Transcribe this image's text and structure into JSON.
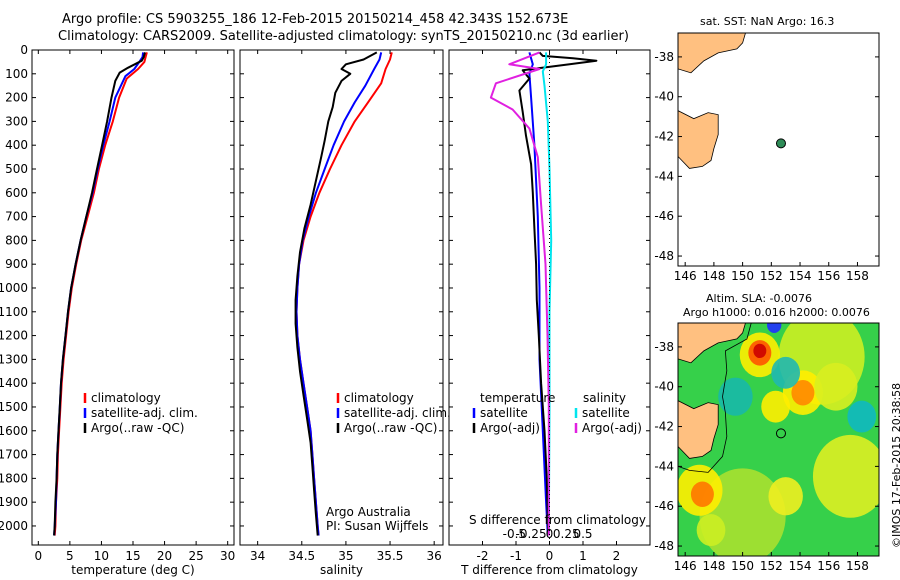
{
  "header": {
    "line1": "Argo profile: CS 5903255_186 12-Feb-2015 20150214_458 42.343S 152.673E",
    "line2": "Climatology: CARS2009. Satellite-adjusted climatology: synTS_20150210.nc (3d earlier)"
  },
  "colors": {
    "climatology": "#ff0000",
    "satellite": "#0000ff",
    "argo": "#000000",
    "sat_s": "#00e5ee",
    "argo_s": "#e020e0",
    "land": "#ffc080",
    "marker": "#2e8b57"
  },
  "chart_data": [
    {
      "type": "line",
      "title": "",
      "xlabel": "temperature (deg C)",
      "ylabel": "",
      "xlim": [
        -1,
        31
      ],
      "ylim": [
        2080,
        0
      ],
      "x_ticks": [
        "0",
        "5",
        "10",
        "15",
        "20",
        "25",
        "30"
      ],
      "y_ticks": [
        "0",
        "100",
        "200",
        "300",
        "400",
        "500",
        "600",
        "700",
        "800",
        "900",
        "1000",
        "1100",
        "1200",
        "1300",
        "1400",
        "1500",
        "1600",
        "1700",
        "1800",
        "1900",
        "2000"
      ],
      "legend": [
        "climatology",
        "satellite-adj. clim.",
        "Argo(..raw -QC)"
      ],
      "legend_placement": "center",
      "series": [
        {
          "name": "climatology",
          "color": "#ff0000",
          "points": [
            [
              17.2,
              10
            ],
            [
              17.0,
              30
            ],
            [
              16.8,
              50
            ],
            [
              15.8,
              80
            ],
            [
              14.0,
              120
            ],
            [
              12.8,
              200
            ],
            [
              11.8,
              300
            ],
            [
              10.6,
              400
            ],
            [
              9.6,
              500
            ],
            [
              8.8,
              600
            ],
            [
              7.8,
              700
            ],
            [
              6.8,
              800
            ],
            [
              6.0,
              900
            ],
            [
              5.3,
              1000
            ],
            [
              4.8,
              1100
            ],
            [
              4.4,
              1200
            ],
            [
              4.0,
              1300
            ],
            [
              3.7,
              1400
            ],
            [
              3.5,
              1500
            ],
            [
              3.3,
              1600
            ],
            [
              3.1,
              1700
            ],
            [
              3.0,
              1800
            ],
            [
              2.8,
              1900
            ],
            [
              2.7,
              2000
            ],
            [
              2.6,
              2040
            ]
          ]
        },
        {
          "name": "satellite-adj. clim.",
          "color": "#0000ff",
          "points": [
            [
              16.6,
              10
            ],
            [
              16.5,
              30
            ],
            [
              16.0,
              50
            ],
            [
              15.2,
              80
            ],
            [
              13.8,
              110
            ],
            [
              12.2,
              200
            ],
            [
              11.3,
              300
            ],
            [
              10.3,
              400
            ],
            [
              9.4,
              500
            ],
            [
              8.6,
              600
            ],
            [
              7.6,
              700
            ],
            [
              6.7,
              800
            ],
            [
              5.9,
              900
            ],
            [
              5.2,
              1000
            ],
            [
              4.7,
              1100
            ],
            [
              4.3,
              1200
            ],
            [
              3.9,
              1300
            ],
            [
              3.6,
              1400
            ],
            [
              3.4,
              1500
            ],
            [
              3.2,
              1600
            ],
            [
              3.0,
              1700
            ],
            [
              2.9,
              1800
            ],
            [
              2.8,
              1900
            ],
            [
              2.6,
              2000
            ],
            [
              2.5,
              2040
            ]
          ]
        },
        {
          "name": "Argo(..raw -QC)",
          "color": "#000000",
          "points": [
            [
              16.9,
              10
            ],
            [
              16.7,
              30
            ],
            [
              16.4,
              45
            ],
            [
              14.2,
              75
            ],
            [
              12.9,
              95
            ],
            [
              12.2,
              130
            ],
            [
              11.6,
              200
            ],
            [
              10.9,
              300
            ],
            [
              10.1,
              400
            ],
            [
              9.3,
              500
            ],
            [
              8.5,
              600
            ],
            [
              7.6,
              700
            ],
            [
              6.7,
              800
            ],
            [
              5.9,
              900
            ],
            [
              5.2,
              1000
            ],
            [
              4.7,
              1100
            ],
            [
              4.3,
              1200
            ],
            [
              3.9,
              1300
            ],
            [
              3.6,
              1400
            ],
            [
              3.4,
              1500
            ],
            [
              3.2,
              1600
            ],
            [
              3.0,
              1700
            ],
            [
              2.9,
              1800
            ],
            [
              2.7,
              1900
            ],
            [
              2.6,
              2000
            ],
            [
              2.5,
              2040
            ]
          ]
        }
      ]
    },
    {
      "type": "line",
      "title": "",
      "xlabel": "salinity",
      "xlim": [
        33.8,
        36.1
      ],
      "ylim": [
        2080,
        0
      ],
      "x_ticks": [
        "34",
        "34.5",
        "35",
        "35.5",
        "36"
      ],
      "legend": [
        "climatology",
        "satellite-adj. clim.",
        "Argo(..raw -QC)"
      ],
      "legend_placement": "center",
      "annotation": [
        "Argo Australia",
        "PI: Susan Wijffels"
      ],
      "series": [
        {
          "name": "climatology",
          "color": "#ff0000",
          "points": [
            [
              35.52,
              10
            ],
            [
              35.5,
              40
            ],
            [
              35.45,
              80
            ],
            [
              35.4,
              140
            ],
            [
              35.25,
              220
            ],
            [
              35.1,
              300
            ],
            [
              34.95,
              400
            ],
            [
              34.82,
              500
            ],
            [
              34.7,
              600
            ],
            [
              34.6,
              700
            ],
            [
              34.52,
              800
            ],
            [
              34.47,
              900
            ],
            [
              34.45,
              1000
            ],
            [
              34.44,
              1100
            ],
            [
              34.45,
              1200
            ],
            [
              34.48,
              1300
            ],
            [
              34.52,
              1400
            ],
            [
              34.56,
              1500
            ],
            [
              34.6,
              1600
            ],
            [
              34.62,
              1700
            ],
            [
              34.64,
              1800
            ],
            [
              34.66,
              1900
            ],
            [
              34.68,
              2000
            ],
            [
              34.69,
              2040
            ]
          ]
        },
        {
          "name": "satellite-adj. clim.",
          "color": "#0000ff",
          "points": [
            [
              35.4,
              10
            ],
            [
              35.38,
              40
            ],
            [
              35.32,
              80
            ],
            [
              35.22,
              150
            ],
            [
              35.1,
              220
            ],
            [
              34.98,
              300
            ],
            [
              34.86,
              400
            ],
            [
              34.76,
              500
            ],
            [
              34.66,
              600
            ],
            [
              34.58,
              700
            ],
            [
              34.51,
              800
            ],
            [
              34.47,
              900
            ],
            [
              34.45,
              1000
            ],
            [
              34.44,
              1100
            ],
            [
              34.45,
              1200
            ],
            [
              34.48,
              1300
            ],
            [
              34.52,
              1400
            ],
            [
              34.56,
              1500
            ],
            [
              34.6,
              1600
            ],
            [
              34.62,
              1700
            ],
            [
              34.64,
              1800
            ],
            [
              34.66,
              1900
            ],
            [
              34.68,
              2000
            ],
            [
              34.69,
              2040
            ]
          ]
        },
        {
          "name": "Argo(..raw -QC)",
          "color": "#000000",
          "points": [
            [
              35.35,
              10
            ],
            [
              35.2,
              40
            ],
            [
              35.0,
              60
            ],
            [
              34.95,
              80
            ],
            [
              35.05,
              100
            ],
            [
              34.95,
              130
            ],
            [
              34.88,
              180
            ],
            [
              34.85,
              240
            ],
            [
              34.8,
              300
            ],
            [
              34.76,
              380
            ],
            [
              34.72,
              450
            ],
            [
              34.66,
              550
            ],
            [
              34.6,
              650
            ],
            [
              34.53,
              750
            ],
            [
              34.48,
              850
            ],
            [
              34.45,
              950
            ],
            [
              34.43,
              1050
            ],
            [
              34.43,
              1150
            ],
            [
              34.45,
              1250
            ],
            [
              34.48,
              1350
            ],
            [
              34.52,
              1450
            ],
            [
              34.56,
              1550
            ],
            [
              34.6,
              1650
            ],
            [
              34.62,
              1750
            ],
            [
              34.64,
              1850
            ],
            [
              34.66,
              1950
            ],
            [
              34.68,
              2040
            ]
          ]
        }
      ]
    },
    {
      "type": "line",
      "title": "",
      "xlabel": "T difference from climatology",
      "xlabel2": "S difference from climatology",
      "xlim": [
        -3,
        3
      ],
      "ylim": [
        2080,
        0
      ],
      "x_ticks": [
        "-2",
        "-1",
        "0",
        "1",
        "2"
      ],
      "x_ticks_top": [
        "-0.5",
        "-0.25",
        "0",
        "0.25",
        "0.5"
      ],
      "legend_headers": [
        "temperature",
        "salinity"
      ],
      "legend": [
        "satellite",
        "Argo(-adj)",
        "satellite",
        "Argo(-adj)"
      ],
      "legend_placement": "center",
      "series": [
        {
          "name": "temperature satellite",
          "color": "#0000ff",
          "points": [
            [
              -0.6,
              10
            ],
            [
              -0.5,
              60
            ],
            [
              -0.6,
              100
            ],
            [
              -0.55,
              200
            ],
            [
              -0.45,
              400
            ],
            [
              -0.35,
              700
            ],
            [
              -0.3,
              1000
            ],
            [
              -0.3,
              1300
            ],
            [
              -0.2,
              1600
            ],
            [
              -0.1,
              1900
            ],
            [
              -0.05,
              2040
            ]
          ]
        },
        {
          "name": "temperature Argo(-adj)",
          "color": "#000000",
          "points": [
            [
              -0.3,
              10
            ],
            [
              -0.2,
              25
            ],
            [
              0.7,
              35
            ],
            [
              1.4,
              45
            ],
            [
              0.6,
              60
            ],
            [
              -0.8,
              85
            ],
            [
              -0.6,
              120
            ],
            [
              -0.9,
              170
            ],
            [
              -0.8,
              260
            ],
            [
              -0.7,
              360
            ],
            [
              -0.55,
              480
            ],
            [
              -0.5,
              600
            ],
            [
              -0.45,
              750
            ],
            [
              -0.4,
              900
            ],
            [
              -0.38,
              1050
            ],
            [
              -0.32,
              1200
            ],
            [
              -0.25,
              1400
            ],
            [
              -0.15,
              1600
            ],
            [
              -0.08,
              1800
            ],
            [
              -0.04,
              2040
            ]
          ]
        },
        {
          "name": "salinity satellite",
          "color": "#00e5ee",
          "points": [
            [
              -0.1,
              10
            ],
            [
              -0.1,
              60
            ],
            [
              -0.2,
              90
            ],
            [
              -0.15,
              150
            ],
            [
              -0.05,
              300
            ],
            [
              0.0,
              500
            ],
            [
              0.05,
              800
            ],
            [
              0.0,
              1100
            ],
            [
              0.0,
              1500
            ],
            [
              -0.02,
              2040
            ]
          ]
        },
        {
          "name": "salinity Argo(-adj)",
          "color": "#e020e0",
          "points": [
            [
              -0.3,
              10
            ],
            [
              -1.2,
              60
            ],
            [
              -0.3,
              80
            ],
            [
              -1.6,
              140
            ],
            [
              -1.75,
              200
            ],
            [
              -1.1,
              250
            ],
            [
              -0.6,
              330
            ],
            [
              -0.35,
              450
            ],
            [
              -0.25,
              650
            ],
            [
              -0.12,
              900
            ],
            [
              -0.06,
              1200
            ],
            [
              -0.02,
              1500
            ],
            [
              -0.02,
              2040
            ]
          ]
        }
      ]
    }
  ],
  "map_sst": {
    "title": "sat. SST: NaN Argo: 16.3",
    "x_ticks": [
      "146",
      "148",
      "150",
      "152",
      "154",
      "156",
      "158"
    ],
    "y_ticks": [
      "-38",
      "-40",
      "-42",
      "-44",
      "-46",
      "-48"
    ],
    "xlim": [
      145.5,
      159.5
    ],
    "ylim": [
      -48.5,
      -36.8
    ],
    "point": {
      "lon": 152.673,
      "lat": -42.343
    }
  },
  "map_sla": {
    "title_line1": "Altim. SLA: -0.0076",
    "title_line2": "Argo h1000: 0.016 h2000: 0.0076",
    "x_ticks": [
      "146",
      "148",
      "150",
      "152",
      "154",
      "156",
      "158"
    ],
    "y_ticks": [
      "-38",
      "-40",
      "-42",
      "-44",
      "-46",
      "-48"
    ],
    "xlim": [
      145.5,
      159.5
    ],
    "ylim": [
      -48.5,
      -36.8
    ],
    "point": {
      "lon": 152.673,
      "lat": -42.343
    }
  },
  "credit": "©IMOS 17-Feb-2015 20:38:58"
}
